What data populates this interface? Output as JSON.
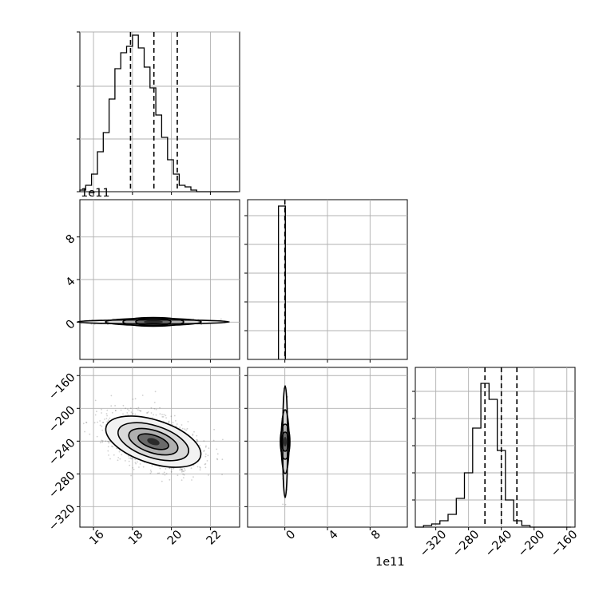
{
  "chart_data": [
    {
      "type": "histogram",
      "panel": "diag-0",
      "x_range": [
        15.3,
        23.5
      ],
      "x_ticks": [
        16,
        18,
        20,
        22
      ],
      "y_ticks_unlabeled": [
        0.33,
        0.66,
        1.0
      ],
      "bins_x": [
        15.3,
        15.6,
        15.9,
        16.2,
        16.5,
        16.8,
        17.1,
        17.4,
        17.7,
        18.0,
        18.3,
        18.6,
        18.9,
        19.2,
        19.5,
        19.8,
        20.1,
        20.4,
        20.7,
        21.0,
        21.3,
        21.6,
        21.9,
        22.2,
        22.5,
        22.8,
        23.1,
        23.4
      ],
      "counts_rel": [
        0.01,
        0.04,
        0.11,
        0.25,
        0.37,
        0.58,
        0.77,
        0.87,
        0.91,
        0.98,
        0.9,
        0.78,
        0.65,
        0.48,
        0.34,
        0.2,
        0.11,
        0.04,
        0.03,
        0.01,
        0.0,
        0.0,
        0.0,
        0.0,
        0.0,
        0.0,
        0.0
      ],
      "quantiles": [
        17.9,
        19.1,
        20.3
      ],
      "grid": true
    },
    {
      "type": "scatter-density",
      "panel": "row1-col0",
      "x_range": [
        15.3,
        23.5
      ],
      "y_range": [
        -3.5,
        11.5
      ],
      "y_ticks": [
        0,
        4,
        8
      ],
      "y_offset_label": "1e11",
      "center": [
        19.1,
        -0.05
      ],
      "grid": true
    },
    {
      "type": "histogram",
      "panel": "diag-1",
      "x_range": [
        -3.5,
        11.5
      ],
      "x_ticks": [
        0,
        4,
        8
      ],
      "x_offset_label": "1e11",
      "bins_x": [
        -0.6,
        0.05
      ],
      "counts_rel": [
        0.96
      ],
      "quantiles": [
        0.0
      ],
      "grid": true
    },
    {
      "type": "scatter-density",
      "panel": "row2-col0",
      "x_range": [
        15.3,
        23.5
      ],
      "y_range": [
        -345,
        -150
      ],
      "x_ticks": [
        16,
        18,
        20,
        22
      ],
      "y_ticks": [
        -160,
        -200,
        -240,
        -280,
        -320
      ],
      "center": [
        19.1,
        -241
      ],
      "grid": true
    },
    {
      "type": "scatter-density",
      "panel": "row2-col1",
      "x_range": [
        -3.5,
        11.5
      ],
      "y_range": [
        -345,
        -150
      ],
      "x_ticks": [
        0,
        4,
        8
      ],
      "x_offset_label": "1e11",
      "center": [
        0.0,
        -241
      ],
      "grid": true
    },
    {
      "type": "histogram",
      "panel": "diag-2",
      "x_range": [
        -345,
        -150
      ],
      "x_ticks": [
        -320,
        -280,
        -240,
        -200,
        -160
      ],
      "bins_x": [
        -345,
        -335,
        -325,
        -315,
        -305,
        -295,
        -285,
        -275,
        -265,
        -255,
        -245,
        -235,
        -225,
        -215,
        -205,
        -195,
        -185,
        -175,
        -165,
        -155
      ],
      "counts_rel": [
        0.0,
        0.01,
        0.02,
        0.04,
        0.08,
        0.18,
        0.34,
        0.62,
        0.9,
        0.8,
        0.48,
        0.17,
        0.04,
        0.01,
        0.0,
        0.0,
        0.0,
        0.0,
        0.0
      ],
      "quantiles": [
        -260,
        -240,
        -221
      ],
      "grid": true
    }
  ],
  "labels": {
    "offset_row1": "1e11",
    "offset_bottom_col1": "1e11"
  }
}
